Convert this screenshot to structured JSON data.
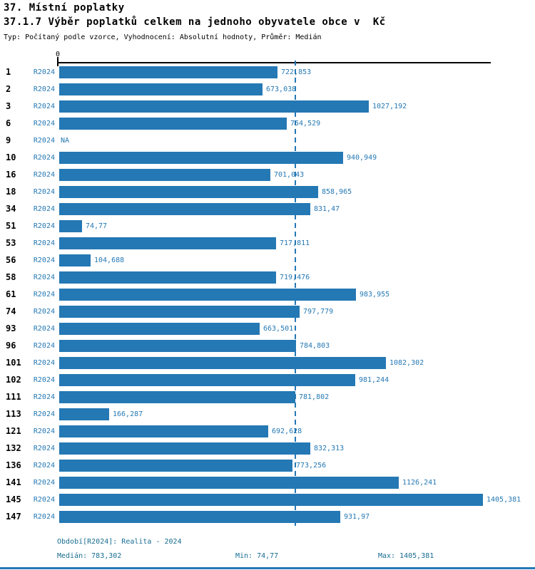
{
  "header": {
    "title": "37. Místní poplatky",
    "subtitle": "37.1.7 Výběr poplatků celkem na jednoho obyvatele obce v  Kč",
    "meta": "Typ: Počítaný podle vzorce, Vyhodnocení: Absolutní hodnoty, Průměr: Medián"
  },
  "colors": {
    "bar": "#2478b4",
    "value_label": "#2478b4",
    "footer_text": "#176d91",
    "axis": "#000000"
  },
  "chart_data": {
    "type": "bar",
    "orientation": "horizontal",
    "title": "37. Místní poplatky",
    "subtitle": "37.1.7 Výběr poplatků celkem na jednoho obyvatele obce v  Kč",
    "axis_zero_label": "0",
    "xlim": [
      0,
      1433
    ],
    "grid": false,
    "series_label": "R2024",
    "median": 783.302,
    "min": 74.77,
    "max": 1405.381,
    "categories": [
      "1",
      "2",
      "3",
      "6",
      "9",
      "10",
      "16",
      "18",
      "34",
      "51",
      "53",
      "56",
      "58",
      "61",
      "74",
      "93",
      "96",
      "101",
      "102",
      "111",
      "113",
      "121",
      "132",
      "136",
      "141",
      "145",
      "147"
    ],
    "rows": [
      {
        "rank": "1",
        "period": "R2024",
        "value": 722.853,
        "label": "722,853"
      },
      {
        "rank": "2",
        "period": "R2024",
        "value": 673.038,
        "label": "673,038"
      },
      {
        "rank": "3",
        "period": "R2024",
        "value": 1027.192,
        "label": "1027,192"
      },
      {
        "rank": "6",
        "period": "R2024",
        "value": 754.529,
        "label": "754,529"
      },
      {
        "rank": "9",
        "period": "R2024",
        "value": null,
        "label": "NA"
      },
      {
        "rank": "10",
        "period": "R2024",
        "value": 940.949,
        "label": "940,949"
      },
      {
        "rank": "16",
        "period": "R2024",
        "value": 701.043,
        "label": "701,043"
      },
      {
        "rank": "18",
        "period": "R2024",
        "value": 858.965,
        "label": "858,965"
      },
      {
        "rank": "34",
        "period": "R2024",
        "value": 831.47,
        "label": "831,47"
      },
      {
        "rank": "51",
        "period": "R2024",
        "value": 74.77,
        "label": "74,77"
      },
      {
        "rank": "53",
        "period": "R2024",
        "value": 717.811,
        "label": "717,811"
      },
      {
        "rank": "56",
        "period": "R2024",
        "value": 104.688,
        "label": "104,688"
      },
      {
        "rank": "58",
        "period": "R2024",
        "value": 719.476,
        "label": "719,476"
      },
      {
        "rank": "61",
        "period": "R2024",
        "value": 983.955,
        "label": "983,955"
      },
      {
        "rank": "74",
        "period": "R2024",
        "value": 797.779,
        "label": "797,779"
      },
      {
        "rank": "93",
        "period": "R2024",
        "value": 663.501,
        "label": "663,501"
      },
      {
        "rank": "96",
        "period": "R2024",
        "value": 784.803,
        "label": "784,803"
      },
      {
        "rank": "101",
        "period": "R2024",
        "value": 1082.302,
        "label": "1082,302"
      },
      {
        "rank": "102",
        "period": "R2024",
        "value": 981.244,
        "label": "981,244"
      },
      {
        "rank": "111",
        "period": "R2024",
        "value": 781.802,
        "label": "781,802"
      },
      {
        "rank": "113",
        "period": "R2024",
        "value": 166.287,
        "label": "166,287"
      },
      {
        "rank": "121",
        "period": "R2024",
        "value": 692.628,
        "label": "692,628"
      },
      {
        "rank": "132",
        "period": "R2024",
        "value": 832.313,
        "label": "832,313"
      },
      {
        "rank": "136",
        "period": "R2024",
        "value": 773.256,
        "label": "773,256"
      },
      {
        "rank": "141",
        "period": "R2024",
        "value": 1126.241,
        "label": "1126,241"
      },
      {
        "rank": "145",
        "period": "R2024",
        "value": 1405.381,
        "label": "1405,381"
      },
      {
        "rank": "147",
        "period": "R2024",
        "value": 931.97,
        "label": "931,97"
      }
    ]
  },
  "footer": {
    "period_line": "Období[R2024]: Realita - 2024",
    "median_label": "Medián: 783,302",
    "min_label": "Min: 74,77",
    "max_label": "Max: 1405,381"
  }
}
